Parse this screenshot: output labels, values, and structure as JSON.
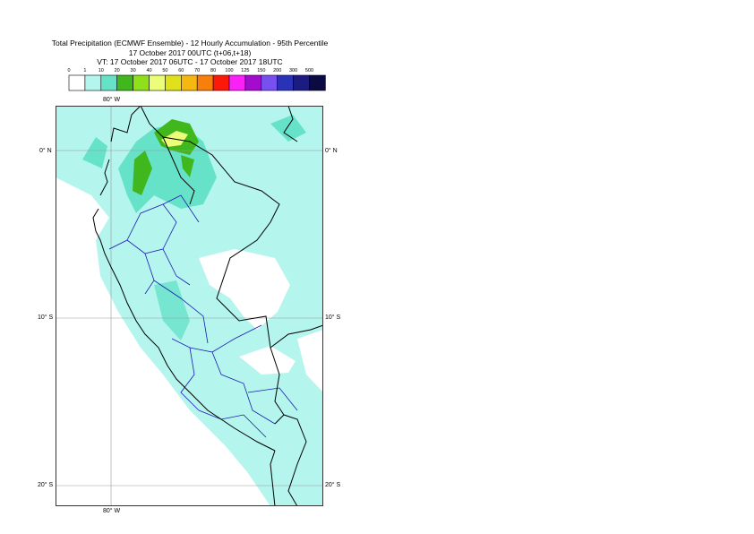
{
  "title": {
    "line1": "Total Precipitation (ECMWF Ensemble) - 12 Hourly Accumulation - 95th Percentile",
    "line2": "17 October 2017 00UTC (t+06,t+18)",
    "line3": "VT: 17 October 2017 06UTC - 17 October 2017 18UTC"
  },
  "legend": {
    "thresholds": [
      "0",
      "1",
      "10",
      "20",
      "30",
      "40",
      "50",
      "60",
      "70",
      "80",
      "100",
      "125",
      "150",
      "200",
      "300",
      "500"
    ],
    "colors": [
      "#ffffff",
      "#b4f5ee",
      "#66e2c8",
      "#41b71e",
      "#8fe01a",
      "#ecfd7a",
      "#e0e01c",
      "#f5b813",
      "#f87f0c",
      "#fb1a0a",
      "#fb1ff8",
      "#a40ccd",
      "#7950f0",
      "#2a33b7",
      "#1c1b80",
      "#0c0a42"
    ]
  },
  "map": {
    "lon_labels": {
      "top": "80° W",
      "bottom": "80° W"
    },
    "lat_labels": [
      {
        "left": "0° N",
        "right": "0° N"
      },
      {
        "left": "10° S",
        "right": "10° S"
      },
      {
        "left": "20° S",
        "right": "20° S"
      }
    ],
    "colors": {
      "ocean_precip": "#b4f5ee",
      "moderate": "#66e2c8",
      "heavy": "#41b71e",
      "peak": "#ecfd7a",
      "coast": "#000000",
      "admin": "#1a1ab0",
      "grid": "#999999"
    }
  }
}
